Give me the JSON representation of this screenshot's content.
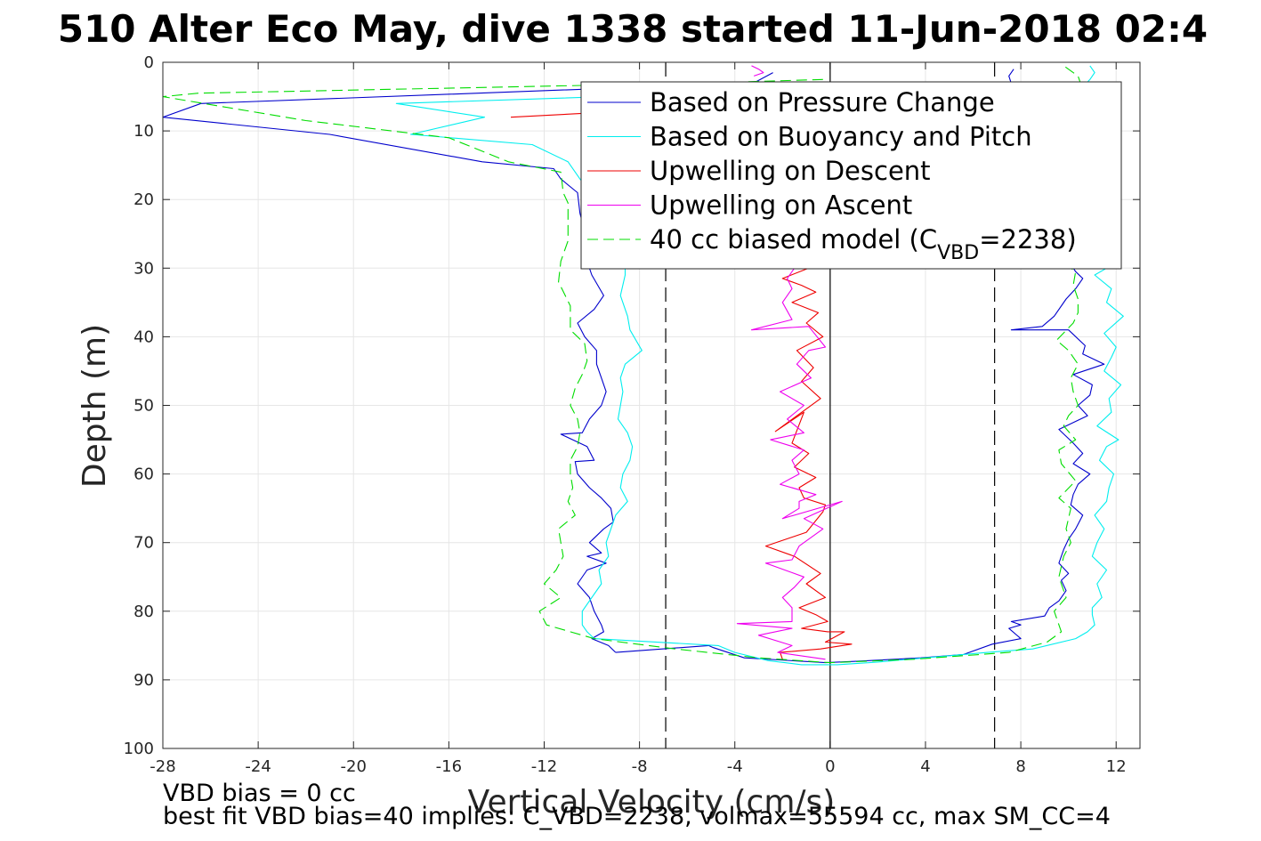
{
  "chart_data": {
    "type": "line",
    "title": "510 Alter Eco May, dive 1338 started 11-Jun-2018 02:4",
    "xlabel": "Vertical Velocity (cm/s)",
    "ylabel": "Depth (m)",
    "xlim": [
      -28,
      13
    ],
    "ylim": [
      0,
      100
    ],
    "y_reversed": true,
    "grid": true,
    "x_ticks": [
      -28,
      -24,
      -20,
      -16,
      -12,
      -8,
      -4,
      0,
      4,
      8,
      12
    ],
    "y_ticks": [
      0,
      10,
      20,
      30,
      40,
      50,
      60,
      70,
      80,
      90,
      100
    ],
    "legend": {
      "position": "top-right",
      "entries": [
        {
          "label": "Based on Pressure Change",
          "series": 0
        },
        {
          "label": "Based on Buoyancy and Pitch",
          "series": 1
        },
        {
          "label": "Upwelling on Descent",
          "series": 2
        },
        {
          "label": "Upwelling on Ascent",
          "series": 3
        },
        {
          "label": "40 cc biased model (C",
          "sub": "VBD",
          "tail": "=2238)",
          "series": 4
        }
      ]
    },
    "reference_lines": [
      {
        "x": 0,
        "style": "solid",
        "color": "#000000"
      },
      {
        "x": -6.9,
        "style": "dashed",
        "color": "#000000"
      },
      {
        "x": 6.9,
        "style": "dashed",
        "color": "#000000"
      }
    ],
    "series": [
      {
        "color": "#0000cc",
        "style": "solid",
        "segments": [
          {
            "x": [
              -2.4,
              -3.2,
              -26.4,
              -28,
              -21,
              -14.6,
              -11.6,
              -11.3,
              -10.6,
              -10.5,
              -10.2,
              -10.2,
              -10.0,
              -9.5,
              -9.9,
              -10.6,
              -10.3,
              -9.8,
              -9.8,
              -9.6,
              -9.4,
              -9.6,
              -10.1,
              -10.4,
              -11.3,
              -10.2,
              -9.9,
              -10.7,
              -10.6,
              -10.1,
              -9.6,
              -9.2,
              -9.1,
              -9.5,
              -10.1,
              -9.6,
              -10.2,
              -9.4,
              -10.2,
              -10.6,
              -10.1,
              -9.9,
              -9.6,
              -9.5,
              -10.0,
              -9.3,
              -9.0
            ],
            "y": [
              1.5,
              3.0,
              6.0,
              8.0,
              10.5,
              14.5,
              15.5,
              17.0,
              19.0,
              22.0,
              26.0,
              29.0,
              31.0,
              34.0,
              36.0,
              38.0,
              40.0,
              42.0,
              44.0,
              46.0,
              48.0,
              50.0,
              52.0,
              54.0,
              54.2,
              56.0,
              58.0,
              58.2,
              60.0,
              62.0,
              63.5,
              65.0,
              67.0,
              68.0,
              70.0,
              71.5,
              72.0,
              73.0,
              74.0,
              76.0,
              78.0,
              80.0,
              82.0,
              83.0,
              84.0,
              85.0,
              86.0
            ]
          },
          {
            "x": [
              -9.0,
              -5.1,
              -4.9,
              -3.6,
              -0.2,
              1.1,
              3.8,
              5.6,
              6.8,
              8.0,
              7.5,
              8.0,
              7.6,
              9.0,
              9.2,
              9.6,
              9.9,
              9.7,
              10.0,
              9.6,
              9.8,
              10.0,
              10.3,
              10.6,
              10.1,
              10.2,
              10.4,
              10.9,
              10.2,
              10.6,
              10.2,
              9.6,
              10.8,
              10.4,
              10.9,
              11.0,
              10.2,
              11.5,
              10.6,
              10.7,
              10.0,
              7.6,
              8.9,
              9.4,
              9.9,
              10.3,
              10.6,
              10.3,
              10.0,
              9.9,
              7.5,
              7.7
            ],
            "y": [
              86.0,
              85.0,
              85.3,
              86.8,
              87.5,
              87.3,
              86.8,
              86.3,
              84.8,
              84.0,
              82.5,
              82.0,
              81.5,
              80.7,
              79.5,
              78.5,
              77.0,
              75.5,
              74.5,
              73.0,
              71.0,
              69.5,
              68.0,
              66.0,
              64.5,
              63.0,
              61.5,
              60.0,
              58.5,
              57.0,
              55.5,
              53.5,
              51.5,
              50.0,
              48.5,
              47.0,
              45.5,
              44.0,
              42.5,
              41.3,
              39.0,
              39.0,
              38.5,
              37.0,
              34.5,
              33.0,
              31.5,
              30.5,
              29.0,
              28.0,
              2.0,
              1.0
            ]
          }
        ]
      },
      {
        "color": "#00eeee",
        "style": "solid",
        "segments": [
          {
            "x": [
              -5.0,
              -18.2,
              -14.5,
              -17.6,
              -12.5,
              -11.0,
              -10.5,
              -9.2,
              -8.7,
              -8.6,
              -8.6,
              -8.8,
              -8.5,
              -8.4,
              -7.9,
              -8.6,
              -8.8,
              -8.7,
              -8.8,
              -8.9,
              -8.5,
              -8.3,
              -8.4,
              -8.7,
              -8.8,
              -8.5,
              -9.0,
              -9.2,
              -9.4,
              -9.3,
              -9.7,
              -9.6,
              -10.0,
              -10.4,
              -10.4,
              -10.2,
              -9.9
            ],
            "y": [
              4.5,
              6.0,
              8.0,
              10.5,
              12.0,
              14.5,
              17.0,
              22.0,
              26.0,
              29.0,
              31.0,
              34.0,
              37.0,
              39.0,
              42.0,
              44.0,
              46.0,
              48.0,
              50.0,
              52.0,
              54.0,
              56.0,
              58.0,
              60.0,
              62.0,
              64.0,
              66.0,
              68.0,
              70.0,
              72.0,
              74.0,
              76.0,
              78.0,
              80.0,
              82.0,
              83.0,
              84.0
            ]
          },
          {
            "x": [
              -9.9,
              -4.7,
              -4.0,
              -2.6,
              -1.2,
              0.3,
              2.0,
              4.0,
              6.6,
              8.5,
              10.3,
              10.8,
              11.1,
              11.0,
              11.0,
              11.4,
              11.2,
              11.6,
              11.0,
              11.2,
              11.5,
              11.1,
              11.6,
              11.7,
              11.9,
              11.3,
              11.6,
              12.1,
              11.2,
              11.8,
              11.7,
              12.2,
              11.5,
              11.8,
              12.0,
              11.5,
              12.3,
              11.6,
              11.8,
              11.1,
              11.6,
              11.3,
              10.2,
              10.5,
              10.8,
              10.5,
              11.4,
              10.5,
              10.9,
              11.1,
              10.9
            ],
            "y": [
              84.0,
              85.0,
              86.0,
              87.2,
              87.8,
              87.8,
              87.4,
              86.8,
              86.0,
              85.5,
              84.0,
              83.0,
              82.0,
              80.5,
              79.5,
              78.0,
              76.0,
              74.0,
              72.0,
              70.0,
              68.0,
              66.0,
              64.0,
              62.0,
              60.0,
              58.0,
              56.0,
              55.0,
              53.0,
              51.0,
              49.0,
              47.0,
              45.0,
              43.0,
              41.5,
              39.5,
              37.0,
              35.0,
              33.0,
              31.0,
              30.0,
              28.0,
              24.0,
              20.0,
              15.0,
              10.0,
              7.0,
              4.0,
              2.5,
              1.5,
              0.5
            ]
          }
        ]
      },
      {
        "color": "#ee0000",
        "style": "solid",
        "segments": [
          {
            "x": [
              -13.4,
              -5.2,
              -3.6,
              -1.2
            ],
            "y": [
              8.0,
              6.5,
              5.5,
              4.5
            ]
          },
          {
            "x": [
              -0.9,
              -2.0,
              -1.2,
              -0.6,
              -1.6,
              -0.5,
              -1.0,
              -0.3,
              -1.4,
              -0.7,
              -1.2,
              -0.4,
              -2.3,
              -1.1,
              -1.6,
              -0.9,
              -1.5,
              -0.6,
              -1.3,
              -1.1,
              -0.2,
              -0.3,
              -1.0,
              -2.7,
              -1.5,
              -0.4,
              -1.0,
              -0.2,
              -1.3,
              -0.6,
              -0.1,
              -1.2,
              -0.1,
              0.6,
              -0.2,
              0.9,
              -0.4,
              -2.1,
              -2.0
            ],
            "y": [
              30.0,
              31.5,
              32.5,
              33.5,
              35.0,
              36.5,
              38.0,
              40.0,
              42.0,
              44.5,
              46.5,
              49.0,
              53.8,
              51.0,
              55.5,
              57.0,
              59.0,
              60.5,
              62.0,
              63.5,
              64.5,
              65.5,
              68.5,
              70.5,
              72.0,
              74.5,
              76.0,
              78.0,
              79.5,
              80.5,
              81.5,
              82.5,
              83.0,
              83.0,
              84.5,
              84.8,
              85.5,
              86.0,
              87.0
            ]
          }
        ]
      },
      {
        "color": "#ee00ee",
        "style": "solid",
        "segments": [
          {
            "x": [
              -3.3,
              -3.0,
              -2.8,
              -3.2
            ],
            "y": [
              0.5,
              1.0,
              1.5,
              2.0
            ]
          },
          {
            "x": [
              -1.5,
              -1.8,
              -1.6,
              -2.0,
              -1.6,
              -3.3,
              -0.9,
              -0.2,
              -0.9,
              -1.4,
              -0.8,
              -2.1,
              -1.1,
              -1.8,
              -1.1,
              -2.5,
              -1.1,
              -1.6,
              -1.3,
              -2.1,
              -0.6,
              -1.3,
              -1.3,
              -2.0,
              0.5,
              -1.1,
              -0.3,
              -1.3,
              -1.6,
              -2.7,
              -1.1,
              -1.5,
              -2.0,
              -1.6,
              -1.6,
              -3.9,
              -1.6,
              -3.0,
              -1.6,
              -2.2,
              -0.2
            ],
            "y": [
              30.0,
              31.5,
              33.0,
              35.0,
              37.5,
              39.0,
              38.5,
              41.5,
              42.0,
              44.0,
              46.0,
              48.0,
              50.0,
              52.0,
              54.0,
              55.0,
              56.5,
              58.0,
              60.0,
              61.5,
              63.0,
              64.0,
              65.0,
              66.5,
              64.0,
              66.5,
              68.0,
              70.5,
              72.5,
              73.0,
              75.0,
              76.5,
              78.0,
              79.5,
              81.5,
              81.8,
              82.5,
              83.5,
              85.0,
              86.0,
              87.0
            ]
          }
        ]
      },
      {
        "color": "#00dd00",
        "style": "dashed",
        "segments": [
          {
            "x": [
              -0.3,
              -5.0,
              -26.5,
              -28.0,
              -22.0,
              -16.0,
              -13.5,
              -11.3,
              -11.2,
              -11.0,
              -11.0,
              -11.3,
              -11.4,
              -10.9,
              -10.9,
              -10.3,
              -10.2,
              -10.4,
              -10.7,
              -10.9,
              -10.6,
              -10.5,
              -10.6,
              -10.9,
              -10.9,
              -10.8,
              -11.0,
              -10.7,
              -11.4,
              -11.3,
              -11.2,
              -11.5,
              -12.0,
              -11.3,
              -12.2,
              -11.9,
              -9.9,
              -6.5,
              -3.0,
              0.0,
              3.5,
              7.5,
              9.1,
              9.7,
              9.4,
              9.9,
              9.6,
              9.8,
              10.1,
              9.9,
              10.1,
              9.6,
              10.3,
              9.7,
              9.6,
              10.3,
              9.8,
              10.0,
              10.4,
              10.2,
              10.1,
              10.4,
              10.0,
              9.5,
              10.2,
              10.4,
              10.4,
              10.2,
              10.3,
              9.7,
              9.3,
              10.1,
              9.8,
              10.2,
              10.7,
              10.4,
              9.8
            ],
            "y": [
              2.5,
              3.0,
              4.5,
              5.0,
              8.5,
              11.0,
              14.5,
              16.0,
              19.0,
              20.5,
              26.0,
              29.0,
              32.0,
              35.5,
              39.0,
              41.0,
              43.5,
              45.5,
              47.5,
              50.0,
              52.0,
              54.0,
              56.0,
              58.0,
              60.0,
              62.0,
              64.0,
              66.0,
              68.0,
              70.0,
              72.0,
              74.0,
              76.0,
              78.0,
              80.0,
              82.0,
              84.0,
              85.5,
              86.8,
              87.5,
              87.0,
              86.0,
              84.5,
              83.0,
              80.0,
              78.0,
              75.0,
              72.0,
              70.0,
              68.0,
              65.0,
              63.5,
              61.0,
              58.5,
              56.5,
              55.0,
              53.0,
              51.5,
              50.0,
              48.0,
              46.0,
              44.0,
              42.0,
              40.5,
              38.0,
              36.5,
              34.5,
              32.5,
              30.5,
              29.0,
              27.5,
              26.0,
              24.5,
              15.0,
              5.0,
              2.0,
              0.5
            ]
          }
        ]
      }
    ]
  },
  "footnotes": {
    "line1": "VBD bias = 0 cc",
    "line2": "best fit VBD bias=40 implies: C_VBD=2238, volmax=55594 cc, max SM_CC=4"
  }
}
